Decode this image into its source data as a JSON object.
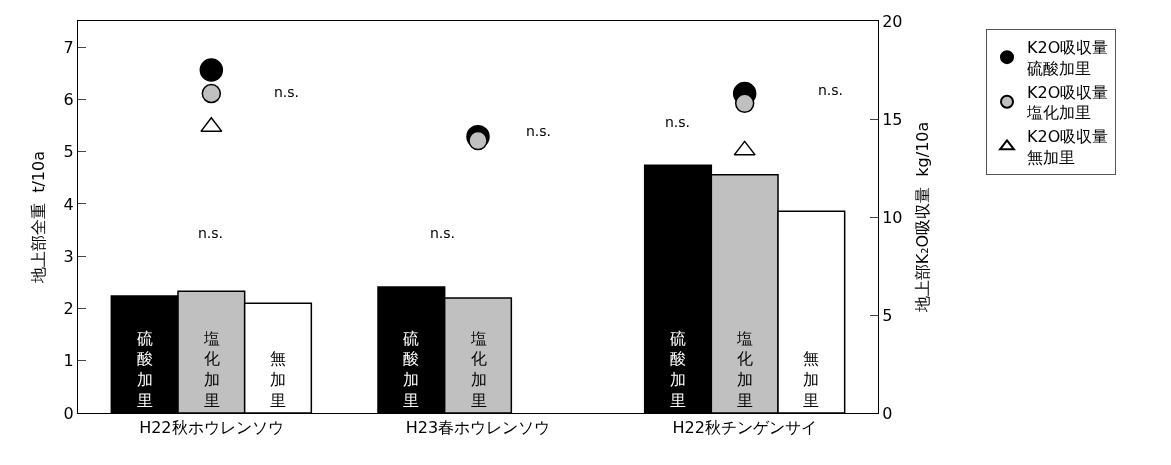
{
  "chart_data": {
    "type": "bar",
    "categories": [
      "H22秋ホウレンソウ",
      "H23春ホウレンソウ",
      "H22秋チンゲンサイ"
    ],
    "series": [
      {
        "name": "硫酸加里",
        "color": "#000000",
        "values": [
          2.24,
          2.41,
          4.74
        ]
      },
      {
        "name": "塩化加里",
        "color": "#c0c0c0",
        "values": [
          2.33,
          2.2,
          4.56
        ]
      },
      {
        "name": "無加里",
        "color": "#ffffff",
        "values": [
          2.1,
          null,
          3.86
        ]
      },
      {
        "name": "K2O吸収量硫酸加里",
        "type": "scatter",
        "axis": "y2",
        "marker": "circle",
        "color": "#000000",
        "values": [
          17.5,
          14.1,
          16.3
        ]
      },
      {
        "name": "K2O吸収量塩化加里",
        "type": "scatter",
        "axis": "y2",
        "marker": "circle",
        "color": "#c0c0c0",
        "values": [
          16.3,
          13.9,
          15.8
        ]
      },
      {
        "name": "K2O吸収量無加里",
        "type": "scatter",
        "axis": "y2",
        "marker": "triangle",
        "color": "#ffffff",
        "values": [
          14.6,
          null,
          13.4
        ]
      }
    ],
    "ylabel": "地上部全重  t/10a",
    "y2label": "地上部K₂O吸収量  kg/10a",
    "ylim": [
      0,
      7.5
    ],
    "yticks": [
      0,
      1,
      2,
      3,
      4,
      5,
      6,
      7
    ],
    "y2lim": [
      0,
      20
    ],
    "y2ticks": [
      0,
      5,
      10,
      15,
      20
    ],
    "annotations": [
      "n.s.",
      "n.s.",
      "n.s.",
      "n.s.",
      "n.s.",
      "n.s."
    ],
    "legend": "right"
  }
}
